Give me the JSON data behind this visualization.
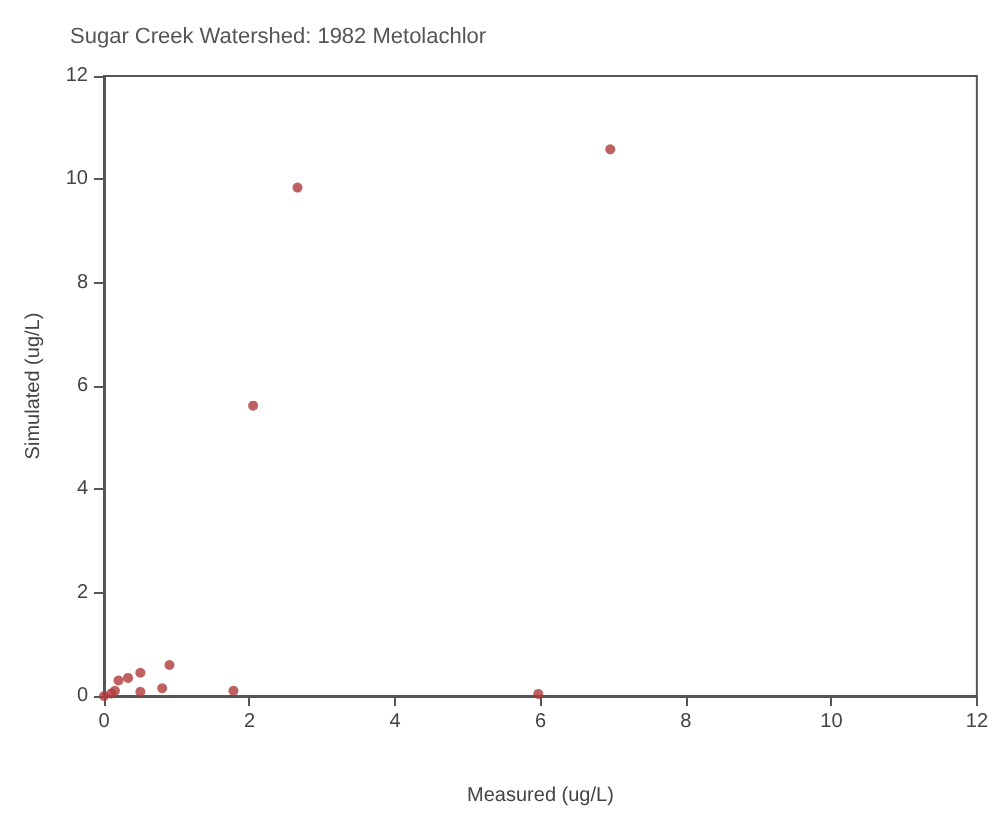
{
  "chart_data": {
    "type": "scatter",
    "title": "Sugar Creek Watershed: 1982 Metolachlor",
    "xlabel": "Measured (ug/L)",
    "ylabel": "Simulated (ug/L)",
    "x": [
      0,
      0.1,
      0.15,
      0.2,
      0.33,
      0.5,
      0.5,
      0.8,
      0.9,
      1.78,
      2.05,
      2.66,
      5.97,
      6.96
    ],
    "values": [
      0,
      0.05,
      0.1,
      0.3,
      0.35,
      0.45,
      0.08,
      0.15,
      0.6,
      0.1,
      5.62,
      9.84,
      0.04,
      10.58
    ],
    "color": "#b03a3a",
    "marker": "circle",
    "xlim": [
      0,
      12
    ],
    "xticks": [
      0,
      2,
      4,
      6,
      8,
      10,
      12
    ],
    "ylim": [
      0,
      12
    ],
    "yticks": [
      0,
      2,
      4,
      6,
      8,
      10,
      12
    ],
    "grid": false
  }
}
